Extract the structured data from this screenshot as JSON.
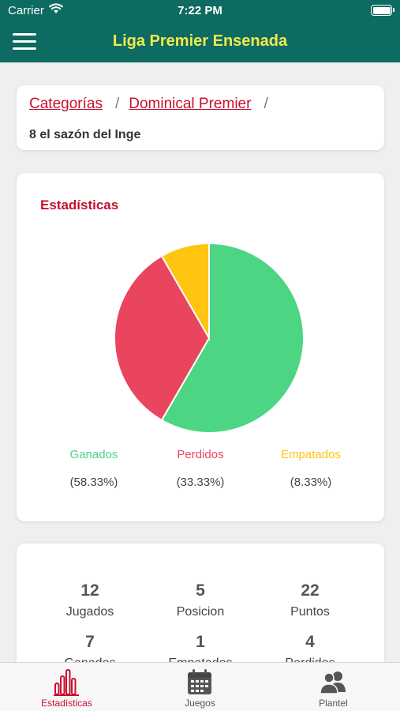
{
  "status_bar": {
    "carrier": "Carrier",
    "time": "7:22 PM"
  },
  "header": {
    "title": "Liga Premier Ensenada"
  },
  "breadcrumb": {
    "items": [
      {
        "label": "Categorías"
      },
      {
        "label": "Dominical Premier"
      }
    ],
    "separator": "/",
    "team_name": "8 el sazón del Inge"
  },
  "stats": {
    "heading": "Estadísticas",
    "legend": [
      {
        "label": "Ganados",
        "percent": "(58.33%)",
        "color": "#4cd683"
      },
      {
        "label": "Perdidos",
        "percent": "(33.33%)",
        "color": "#e9455e"
      },
      {
        "label": "Empatados",
        "percent": "(8.33%)",
        "color": "#ffc510"
      }
    ]
  },
  "chart_data": {
    "type": "pie",
    "categories": [
      "Ganados",
      "Perdidos",
      "Empatados"
    ],
    "values": [
      58.33,
      33.33,
      8.33
    ],
    "colors": [
      "#4cd683",
      "#e9455e",
      "#ffc510"
    ]
  },
  "summary": {
    "items": [
      {
        "value": "12",
        "label": "Jugados"
      },
      {
        "value": "5",
        "label": "Posicion"
      },
      {
        "value": "22",
        "label": "Puntos"
      },
      {
        "value": "7",
        "label": "Ganados"
      },
      {
        "value": "1",
        "label": "Empatados"
      },
      {
        "value": "4",
        "label": "Perdidos"
      }
    ]
  },
  "tabs": [
    {
      "label": "Estadísticas",
      "icon": "bar-chart-icon",
      "active": true
    },
    {
      "label": "Juegos",
      "icon": "calendar-icon",
      "active": false
    },
    {
      "label": "Plantel",
      "icon": "users-icon",
      "active": false
    }
  ],
  "colors": {
    "primary": "#0d6b61",
    "title": "#f2e94e",
    "accent": "#c8102e",
    "tab_inactive": "#555555"
  }
}
